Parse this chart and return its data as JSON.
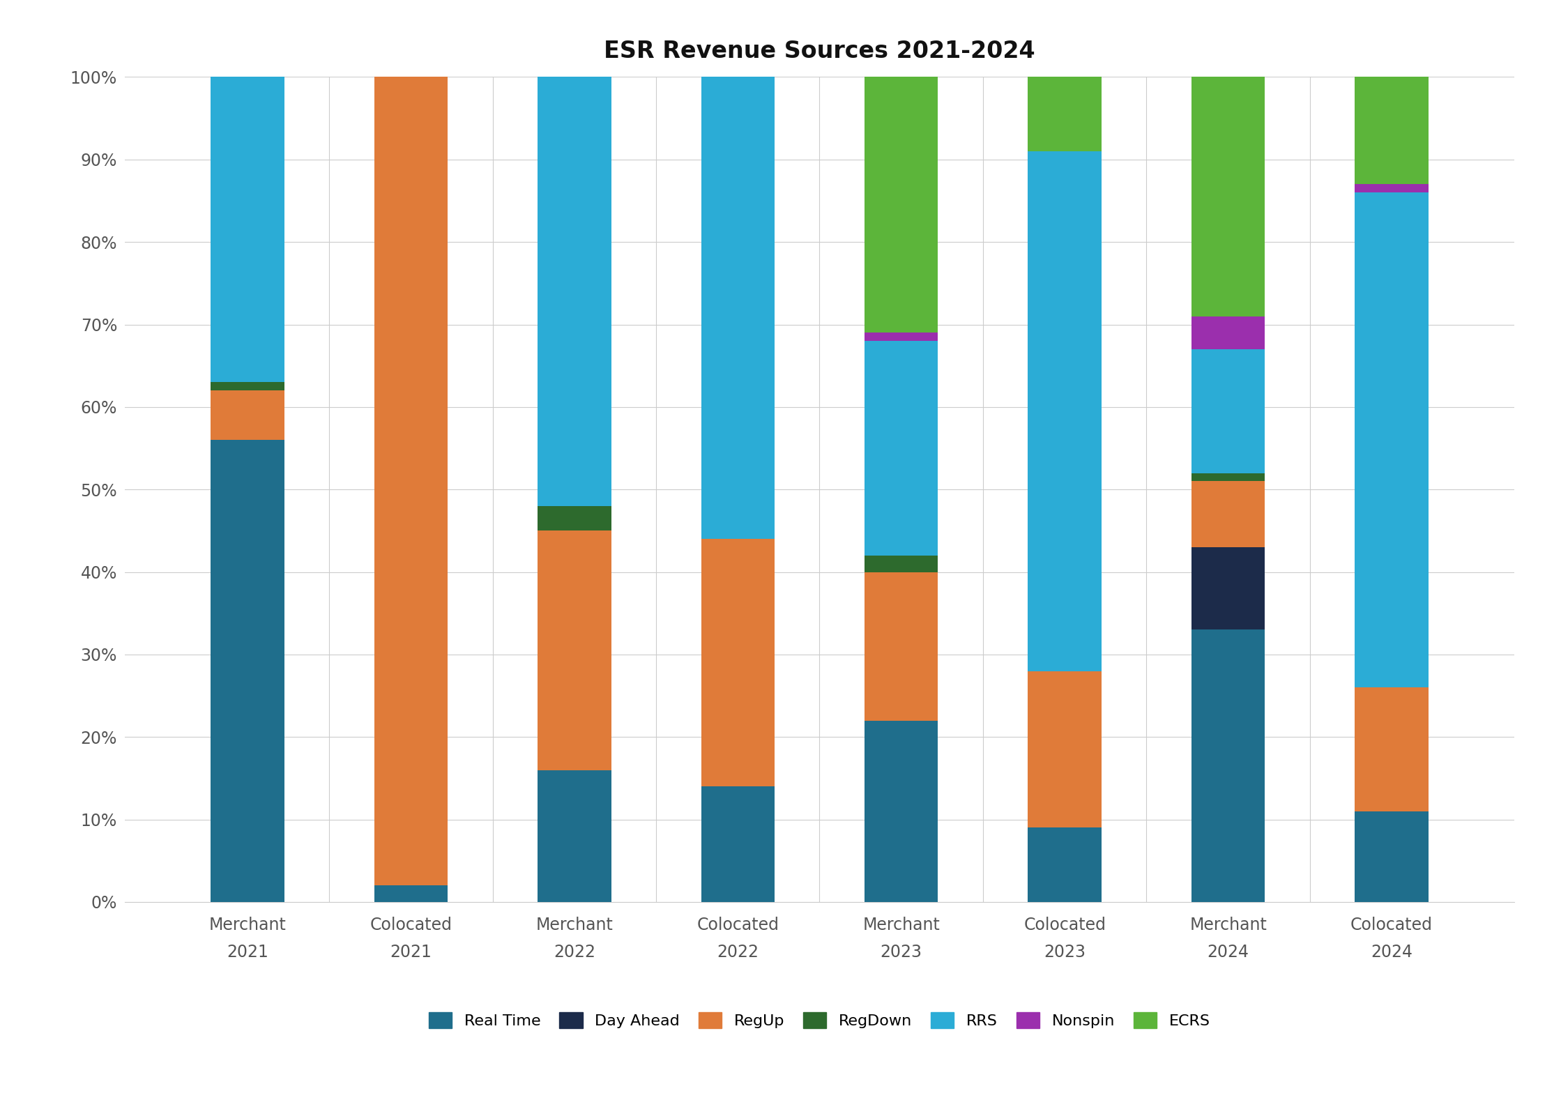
{
  "title": "ESR Revenue Sources 2021-2024",
  "categories": [
    "Merchant\n2021",
    "Colocated\n2021",
    "Merchant\n2022",
    "Colocated\n2022",
    "Merchant\n2023",
    "Colocated\n2023",
    "Merchant\n2024",
    "Colocated\n2024"
  ],
  "series": {
    "Real Time": [
      0.56,
      0.02,
      0.16,
      0.14,
      0.22,
      0.09,
      0.33,
      0.11
    ],
    "Day Ahead": [
      0.0,
      0.0,
      0.0,
      0.0,
      0.0,
      0.0,
      0.1,
      0.0
    ],
    "RegUp": [
      0.06,
      0.98,
      0.29,
      0.3,
      0.18,
      0.19,
      0.08,
      0.15
    ],
    "RegDown": [
      0.01,
      0.0,
      0.03,
      0.0,
      0.02,
      0.0,
      0.01,
      0.0
    ],
    "RRS": [
      0.37,
      0.0,
      0.52,
      0.56,
      0.26,
      0.63,
      0.15,
      0.6
    ],
    "Nonspin": [
      0.0,
      0.0,
      0.0,
      0.0,
      0.01,
      0.0,
      0.04,
      0.01
    ],
    "ECRS": [
      0.0,
      0.0,
      0.0,
      0.0,
      0.31,
      0.09,
      0.29,
      0.13
    ]
  },
  "colors": {
    "Real Time": "#1F6E8C",
    "Day Ahead": "#1C2B4A",
    "RegUp": "#E07B39",
    "RegDown": "#2D6A2D",
    "RRS": "#2BACD6",
    "Nonspin": "#9B2FAD",
    "ECRS": "#5CB53A"
  },
  "ylim": [
    0,
    1.0
  ],
  "yticks": [
    0.0,
    0.1,
    0.2,
    0.3,
    0.4,
    0.5,
    0.6,
    0.7,
    0.8,
    0.9,
    1.0
  ],
  "ytick_labels": [
    "0%",
    "10%",
    "20%",
    "30%",
    "40%",
    "50%",
    "60%",
    "70%",
    "80%",
    "90%",
    "100%"
  ],
  "bar_width": 0.45,
  "background_color": "#FFFFFF",
  "title_fontsize": 24,
  "tick_fontsize": 17,
  "legend_fontsize": 16,
  "grid_color": "#CCCCCC"
}
